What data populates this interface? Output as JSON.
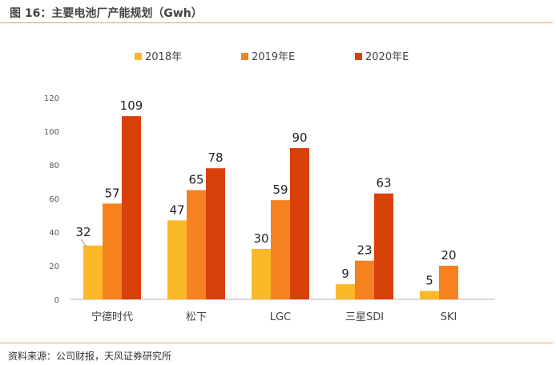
{
  "header": {
    "title": "图 16：主要电池厂产能规划（Gwh）"
  },
  "footer": {
    "source": "资料来源：公司财报，天风证券研究所"
  },
  "chart_data": {
    "type": "bar",
    "title": "",
    "xlabel": "",
    "ylabel": "",
    "ylim": [
      0,
      120
    ],
    "yticks": [
      0,
      20,
      40,
      60,
      80,
      100,
      120
    ],
    "grid": false,
    "legend": "top",
    "categories": [
      "宁德时代",
      "松下",
      "LGC",
      "三星SDI",
      "SKI"
    ],
    "series": [
      {
        "name": "2018年",
        "color": "#FBB829",
        "values": [
          32,
          47,
          30,
          9,
          5
        ]
      },
      {
        "name": "2019年E",
        "color": "#F5821F",
        "values": [
          57,
          65,
          59,
          23,
          20
        ]
      },
      {
        "name": "2020年E",
        "color": "#D9410B",
        "values": [
          109,
          78,
          90,
          63,
          null
        ]
      }
    ]
  }
}
